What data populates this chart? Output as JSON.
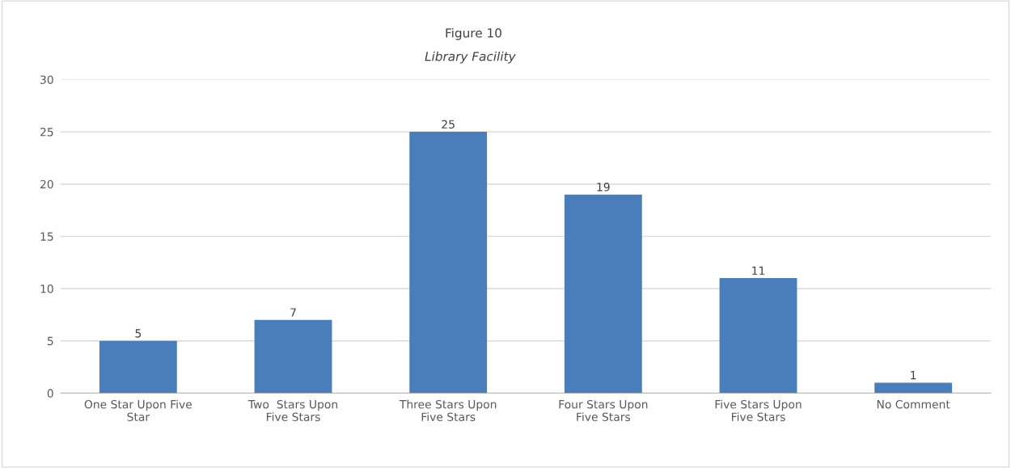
{
  "chart_data": {
    "type": "bar",
    "title": "Figure 10",
    "subtitle": "Library Facility",
    "categories": [
      "One Star Upon Five\nStar",
      "Two  Stars Upon\nFive Stars",
      "Three Stars Upon\nFive Stars",
      "Four Stars Upon\nFive Stars",
      "Five Stars Upon\nFive Stars",
      "No Comment"
    ],
    "values": [
      5,
      7,
      25,
      19,
      11,
      1
    ],
    "color": "#4a7ebb",
    "ylim": [
      0,
      30
    ],
    "yticks": [
      0,
      5,
      10,
      15,
      20,
      25,
      30
    ],
    "grid": "y",
    "data_labels": true,
    "legend": false
  }
}
